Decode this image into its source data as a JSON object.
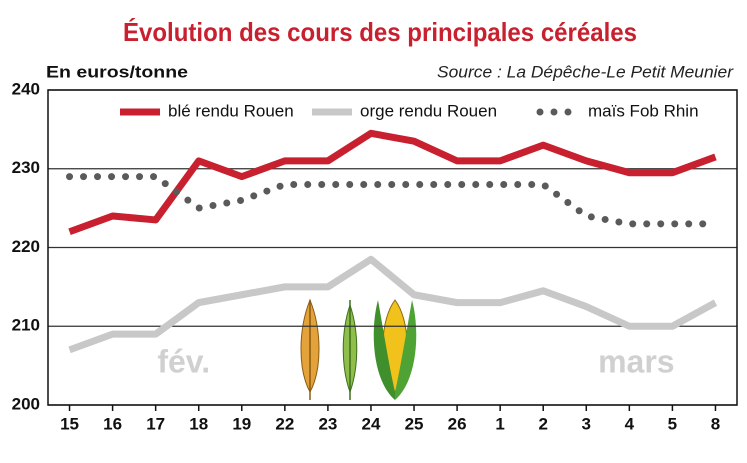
{
  "chart_data": {
    "type": "line",
    "title": "Évolution des cours des principales céréales",
    "y_label": "En euros/tonne",
    "source": "Source : La Dépêche-Le Petit Meunier",
    "categories": [
      "15",
      "16",
      "17",
      "18",
      "19",
      "22",
      "23",
      "24",
      "25",
      "26",
      "1",
      "2",
      "3",
      "4",
      "5",
      "8"
    ],
    "annotations": [
      "fév.",
      "mars"
    ],
    "series": [
      {
        "name": "blé rendu Rouen",
        "color": "#c8202f",
        "style": "solid",
        "values": [
          222,
          224,
          223.5,
          231,
          229,
          231,
          231,
          234.5,
          233.5,
          231,
          231,
          233,
          231,
          229.5,
          229.5,
          231.5
        ]
      },
      {
        "name": "orge rendu Rouen",
        "color": "#c8c8c8",
        "style": "solid",
        "values": [
          207,
          209,
          209,
          213,
          214,
          215,
          215,
          218.5,
          214,
          213,
          213,
          214.5,
          212.5,
          210,
          210,
          213
        ]
      },
      {
        "name": "maïs Fob Rhin",
        "color": "#5a5a5a",
        "style": "dotted",
        "values": [
          229,
          229,
          229,
          225,
          226,
          228,
          228,
          228,
          228,
          228,
          228,
          228,
          224,
          223,
          223,
          223
        ]
      }
    ],
    "ylim": [
      200,
      240
    ],
    "yticks": [
      200,
      210,
      220,
      230,
      240
    ],
    "grid": true,
    "legend": "top"
  }
}
